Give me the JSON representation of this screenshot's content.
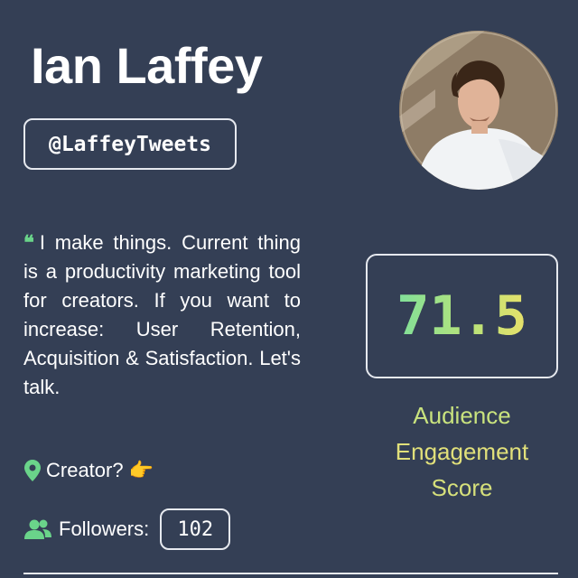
{
  "profile": {
    "name": "Ian Laffey",
    "handle": "@LaffeyTweets",
    "avatar_icon": "profile-photo",
    "bio": "I make things. Current thing is a productivity marketing tool for creators. If you want to increase: User Retention, Acquisition & Satisfaction. Let's talk.",
    "quote_icon": "❝",
    "location": "Creator? 👉",
    "followers_label": "Followers:",
    "followers_count": "102"
  },
  "score": {
    "value": "71.5",
    "label_line1": "Audience",
    "label_line2": "Engagement",
    "label_line3": "Score"
  },
  "colors": {
    "background": "#343f55",
    "accent_green": "#6ad48a",
    "accent_yellow": "#e1e07a"
  }
}
